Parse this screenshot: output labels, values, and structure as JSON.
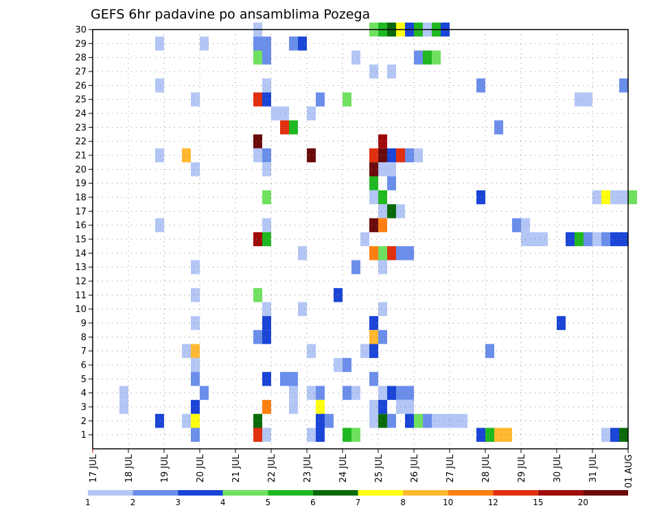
{
  "chart_data": {
    "type": "heatmap",
    "title": "GEFS 6hr padavine po ansamblima Pozega",
    "x_tick_labels": [
      "17 JUL",
      "18 JUL",
      "19 JUL",
      "20 JUL",
      "21 JUL",
      "22 JUL",
      "23 JUL",
      "24 JUL",
      "25 JUL",
      "26 JUL",
      "27 JUL",
      "28 JUL",
      "29 JUL",
      "30 JUL",
      "31 JUL",
      "01 AUG"
    ],
    "y_tick_labels": [
      "1",
      "2",
      "3",
      "4",
      "5",
      "6",
      "7",
      "8",
      "9",
      "10",
      "11",
      "12",
      "13",
      "14",
      "15",
      "16",
      "17",
      "18",
      "19",
      "20",
      "21",
      "22",
      "23",
      "24",
      "25",
      "26",
      "27",
      "28",
      "29",
      "30"
    ],
    "x_range_days": [
      0,
      15
    ],
    "y_range_members": [
      0,
      30
    ],
    "grid": true,
    "colorbar": {
      "levels": [
        "1",
        "2",
        "3",
        "4",
        "5",
        "6",
        "7",
        "8",
        "10",
        "12",
        "15",
        "20"
      ],
      "colors": [
        "#b3c6f5",
        "#6b8eeb",
        "#1a45d6",
        "#70e060",
        "#20b820",
        "#0a6a0a",
        "#ffff10",
        "#ffb830",
        "#ff8010",
        "#e03010",
        "#a00a0a",
        "#6a0a0a"
      ]
    },
    "cells": [
      {
        "day": 4.5,
        "member": 30,
        "cat": 0
      },
      {
        "day": 7.75,
        "member": 30,
        "cat": 3
      },
      {
        "day": 8.0,
        "member": 30,
        "cat": 4
      },
      {
        "day": 8.25,
        "member": 30,
        "cat": 5
      },
      {
        "day": 8.5,
        "member": 30,
        "cat": 6
      },
      {
        "day": 8.75,
        "member": 30,
        "cat": 2
      },
      {
        "day": 9.0,
        "member": 30,
        "cat": 4
      },
      {
        "day": 9.25,
        "member": 30,
        "cat": 0
      },
      {
        "day": 9.5,
        "member": 30,
        "cat": 4
      },
      {
        "day": 9.75,
        "member": 30,
        "cat": 2
      },
      {
        "day": 1.75,
        "member": 29,
        "cat": 0
      },
      {
        "day": 3.0,
        "member": 29,
        "cat": 0
      },
      {
        "day": 4.5,
        "member": 29,
        "cat": 1
      },
      {
        "day": 4.75,
        "member": 29,
        "cat": 1
      },
      {
        "day": 5.5,
        "member": 29,
        "cat": 1
      },
      {
        "day": 5.75,
        "member": 29,
        "cat": 2
      },
      {
        "day": 4.5,
        "member": 28,
        "cat": 3
      },
      {
        "day": 4.75,
        "member": 28,
        "cat": 1
      },
      {
        "day": 7.25,
        "member": 28,
        "cat": 0
      },
      {
        "day": 9.0,
        "member": 28,
        "cat": 1
      },
      {
        "day": 9.25,
        "member": 28,
        "cat": 4
      },
      {
        "day": 9.5,
        "member": 28,
        "cat": 3
      },
      {
        "day": 7.75,
        "member": 27,
        "cat": 0
      },
      {
        "day": 8.25,
        "member": 27,
        "cat": 0
      },
      {
        "day": 1.75,
        "member": 26,
        "cat": 0
      },
      {
        "day": 4.75,
        "member": 26,
        "cat": 0
      },
      {
        "day": 10.75,
        "member": 26,
        "cat": 1
      },
      {
        "day": 14.75,
        "member": 26,
        "cat": 1
      },
      {
        "day": 2.75,
        "member": 25,
        "cat": 0
      },
      {
        "day": 4.5,
        "member": 25,
        "cat": 9
      },
      {
        "day": 4.75,
        "member": 25,
        "cat": 2
      },
      {
        "day": 6.25,
        "member": 25,
        "cat": 1
      },
      {
        "day": 7.0,
        "member": 25,
        "cat": 3
      },
      {
        "day": 13.5,
        "member": 25,
        "cat": 0
      },
      {
        "day": 13.75,
        "member": 25,
        "cat": 0
      },
      {
        "day": 5.0,
        "member": 24,
        "cat": 0
      },
      {
        "day": 5.25,
        "member": 24,
        "cat": 0
      },
      {
        "day": 6.0,
        "member": 24,
        "cat": 0
      },
      {
        "day": 5.25,
        "member": 23,
        "cat": 9
      },
      {
        "day": 5.5,
        "member": 23,
        "cat": 4
      },
      {
        "day": 11.25,
        "member": 23,
        "cat": 1
      },
      {
        "day": 4.5,
        "member": 22,
        "cat": 11
      },
      {
        "day": 8.0,
        "member": 22,
        "cat": 10
      },
      {
        "day": 1.75,
        "member": 21,
        "cat": 0
      },
      {
        "day": 2.5,
        "member": 21,
        "cat": 7
      },
      {
        "day": 4.5,
        "member": 21,
        "cat": 0
      },
      {
        "day": 4.75,
        "member": 21,
        "cat": 1
      },
      {
        "day": 6.0,
        "member": 21,
        "cat": 11
      },
      {
        "day": 7.75,
        "member": 21,
        "cat": 9
      },
      {
        "day": 8.0,
        "member": 21,
        "cat": 11
      },
      {
        "day": 8.25,
        "member": 21,
        "cat": 2
      },
      {
        "day": 8.5,
        "member": 21,
        "cat": 9
      },
      {
        "day": 8.75,
        "member": 21,
        "cat": 1
      },
      {
        "day": 9.0,
        "member": 21,
        "cat": 0
      },
      {
        "day": 2.75,
        "member": 20,
        "cat": 0
      },
      {
        "day": 4.75,
        "member": 20,
        "cat": 0
      },
      {
        "day": 7.75,
        "member": 20,
        "cat": 11
      },
      {
        "day": 8.0,
        "member": 20,
        "cat": 0
      },
      {
        "day": 8.25,
        "member": 20,
        "cat": 0
      },
      {
        "day": 7.75,
        "member": 19,
        "cat": 4
      },
      {
        "day": 8.25,
        "member": 19,
        "cat": 1
      },
      {
        "day": 4.75,
        "member": 18,
        "cat": 3
      },
      {
        "day": 7.75,
        "member": 18,
        "cat": 0
      },
      {
        "day": 8.0,
        "member": 18,
        "cat": 4
      },
      {
        "day": 10.75,
        "member": 18,
        "cat": 2
      },
      {
        "day": 14.0,
        "member": 18,
        "cat": 0
      },
      {
        "day": 14.25,
        "member": 18,
        "cat": 6
      },
      {
        "day": 14.5,
        "member": 18,
        "cat": 0
      },
      {
        "day": 14.75,
        "member": 18,
        "cat": 0
      },
      {
        "day": 15.0,
        "member": 18,
        "cat": 3
      },
      {
        "day": 8.0,
        "member": 17,
        "cat": 0
      },
      {
        "day": 8.25,
        "member": 17,
        "cat": 5
      },
      {
        "day": 8.5,
        "member": 17,
        "cat": 0
      },
      {
        "day": 1.75,
        "member": 16,
        "cat": 0
      },
      {
        "day": 4.75,
        "member": 16,
        "cat": 0
      },
      {
        "day": 7.75,
        "member": 16,
        "cat": 11
      },
      {
        "day": 8.0,
        "member": 16,
        "cat": 8
      },
      {
        "day": 11.75,
        "member": 16,
        "cat": 1
      },
      {
        "day": 12.0,
        "member": 16,
        "cat": 0
      },
      {
        "day": 4.5,
        "member": 15,
        "cat": 10
      },
      {
        "day": 4.75,
        "member": 15,
        "cat": 4
      },
      {
        "day": 7.5,
        "member": 15,
        "cat": 0
      },
      {
        "day": 12.0,
        "member": 15,
        "cat": 0
      },
      {
        "day": 12.25,
        "member": 15,
        "cat": 0
      },
      {
        "day": 12.5,
        "member": 15,
        "cat": 0
      },
      {
        "day": 13.25,
        "member": 15,
        "cat": 2
      },
      {
        "day": 13.5,
        "member": 15,
        "cat": 4
      },
      {
        "day": 13.75,
        "member": 15,
        "cat": 1
      },
      {
        "day": 14.0,
        "member": 15,
        "cat": 0
      },
      {
        "day": 14.25,
        "member": 15,
        "cat": 1
      },
      {
        "day": 14.5,
        "member": 15,
        "cat": 2
      },
      {
        "day": 14.75,
        "member": 15,
        "cat": 2
      },
      {
        "day": 7.75,
        "member": 14,
        "cat": 8
      },
      {
        "day": 8.0,
        "member": 14,
        "cat": 3
      },
      {
        "day": 8.25,
        "member": 14,
        "cat": 9
      },
      {
        "day": 8.5,
        "member": 14,
        "cat": 1
      },
      {
        "day": 8.75,
        "member": 14,
        "cat": 1
      },
      {
        "day": 5.75,
        "member": 14,
        "cat": 0
      },
      {
        "day": 2.75,
        "member": 13,
        "cat": 0
      },
      {
        "day": 7.25,
        "member": 13,
        "cat": 1
      },
      {
        "day": 8.0,
        "member": 13,
        "cat": 0
      },
      {
        "day": 6.75,
        "member": 11,
        "cat": 2
      },
      {
        "day": 2.75,
        "member": 11,
        "cat": 0
      },
      {
        "day": 4.5,
        "member": 11,
        "cat": 3
      },
      {
        "day": 4.75,
        "member": 10,
        "cat": 0
      },
      {
        "day": 5.75,
        "member": 10,
        "cat": 0
      },
      {
        "day": 8.0,
        "member": 10,
        "cat": 0
      },
      {
        "day": 2.75,
        "member": 9,
        "cat": 0
      },
      {
        "day": 4.75,
        "member": 9,
        "cat": 2
      },
      {
        "day": 7.75,
        "member": 9,
        "cat": 2
      },
      {
        "day": 13.0,
        "member": 9,
        "cat": 2
      },
      {
        "day": 4.5,
        "member": 8,
        "cat": 1
      },
      {
        "day": 4.75,
        "member": 8,
        "cat": 2
      },
      {
        "day": 7.75,
        "member": 8,
        "cat": 7
      },
      {
        "day": 8.0,
        "member": 8,
        "cat": 1
      },
      {
        "day": 2.5,
        "member": 7,
        "cat": 0
      },
      {
        "day": 2.75,
        "member": 7,
        "cat": 7
      },
      {
        "day": 6.0,
        "member": 7,
        "cat": 0
      },
      {
        "day": 7.5,
        "member": 7,
        "cat": 0
      },
      {
        "day": 7.75,
        "member": 7,
        "cat": 2
      },
      {
        "day": 11.0,
        "member": 7,
        "cat": 1
      },
      {
        "day": 2.75,
        "member": 6,
        "cat": 0
      },
      {
        "day": 6.75,
        "member": 6,
        "cat": 0
      },
      {
        "day": 7.0,
        "member": 6,
        "cat": 1
      },
      {
        "day": 2.75,
        "member": 5,
        "cat": 1
      },
      {
        "day": 4.75,
        "member": 5,
        "cat": 2
      },
      {
        "day": 5.25,
        "member": 5,
        "cat": 1
      },
      {
        "day": 5.5,
        "member": 5,
        "cat": 1
      },
      {
        "day": 7.75,
        "member": 5,
        "cat": 1
      },
      {
        "day": 0.75,
        "member": 4,
        "cat": 0
      },
      {
        "day": 3.0,
        "member": 4,
        "cat": 1
      },
      {
        "day": 5.5,
        "member": 4,
        "cat": 0
      },
      {
        "day": 6.0,
        "member": 4,
        "cat": 0
      },
      {
        "day": 6.25,
        "member": 4,
        "cat": 1
      },
      {
        "day": 7.0,
        "member": 4,
        "cat": 1
      },
      {
        "day": 7.25,
        "member": 4,
        "cat": 0
      },
      {
        "day": 8.0,
        "member": 4,
        "cat": 0
      },
      {
        "day": 8.25,
        "member": 4,
        "cat": 2
      },
      {
        "day": 8.5,
        "member": 4,
        "cat": 1
      },
      {
        "day": 8.75,
        "member": 4,
        "cat": 1
      },
      {
        "day": 0.75,
        "member": 3,
        "cat": 0
      },
      {
        "day": 2.75,
        "member": 3,
        "cat": 2
      },
      {
        "day": 4.75,
        "member": 3,
        "cat": 8
      },
      {
        "day": 5.5,
        "member": 3,
        "cat": 0
      },
      {
        "day": 6.25,
        "member": 3,
        "cat": 6
      },
      {
        "day": 7.75,
        "member": 3,
        "cat": 0
      },
      {
        "day": 8.0,
        "member": 3,
        "cat": 2
      },
      {
        "day": 8.5,
        "member": 3,
        "cat": 0
      },
      {
        "day": 8.75,
        "member": 3,
        "cat": 0
      },
      {
        "day": 1.75,
        "member": 2,
        "cat": 2
      },
      {
        "day": 2.5,
        "member": 2,
        "cat": 0
      },
      {
        "day": 2.75,
        "member": 2,
        "cat": 6
      },
      {
        "day": 4.5,
        "member": 2,
        "cat": 5
      },
      {
        "day": 6.25,
        "member": 2,
        "cat": 2
      },
      {
        "day": 6.5,
        "member": 2,
        "cat": 1
      },
      {
        "day": 7.75,
        "member": 2,
        "cat": 0
      },
      {
        "day": 8.0,
        "member": 2,
        "cat": 5
      },
      {
        "day": 8.25,
        "member": 2,
        "cat": 1
      },
      {
        "day": 8.75,
        "member": 2,
        "cat": 2
      },
      {
        "day": 9.0,
        "member": 2,
        "cat": 3
      },
      {
        "day": 9.25,
        "member": 2,
        "cat": 1
      },
      {
        "day": 9.5,
        "member": 2,
        "cat": 0
      },
      {
        "day": 9.75,
        "member": 2,
        "cat": 0
      },
      {
        "day": 10.0,
        "member": 2,
        "cat": 0
      },
      {
        "day": 10.25,
        "member": 2,
        "cat": 0
      },
      {
        "day": 6.0,
        "member": 1,
        "cat": 0
      },
      {
        "day": 6.25,
        "member": 1,
        "cat": 2
      },
      {
        "day": 7.0,
        "member": 1,
        "cat": 4
      },
      {
        "day": 7.25,
        "member": 1,
        "cat": 3
      },
      {
        "day": 2.75,
        "member": 1,
        "cat": 1
      },
      {
        "day": 4.5,
        "member": 1,
        "cat": 9
      },
      {
        "day": 4.75,
        "member": 1,
        "cat": 0
      },
      {
        "day": 10.75,
        "member": 1,
        "cat": 2
      },
      {
        "day": 11.0,
        "member": 1,
        "cat": 4
      },
      {
        "day": 11.25,
        "member": 1,
        "cat": 7
      },
      {
        "day": 11.5,
        "member": 1,
        "cat": 7
      },
      {
        "day": 14.25,
        "member": 1,
        "cat": 0
      },
      {
        "day": 14.5,
        "member": 1,
        "cat": 2
      },
      {
        "day": 14.75,
        "member": 1,
        "cat": 5
      }
    ]
  }
}
